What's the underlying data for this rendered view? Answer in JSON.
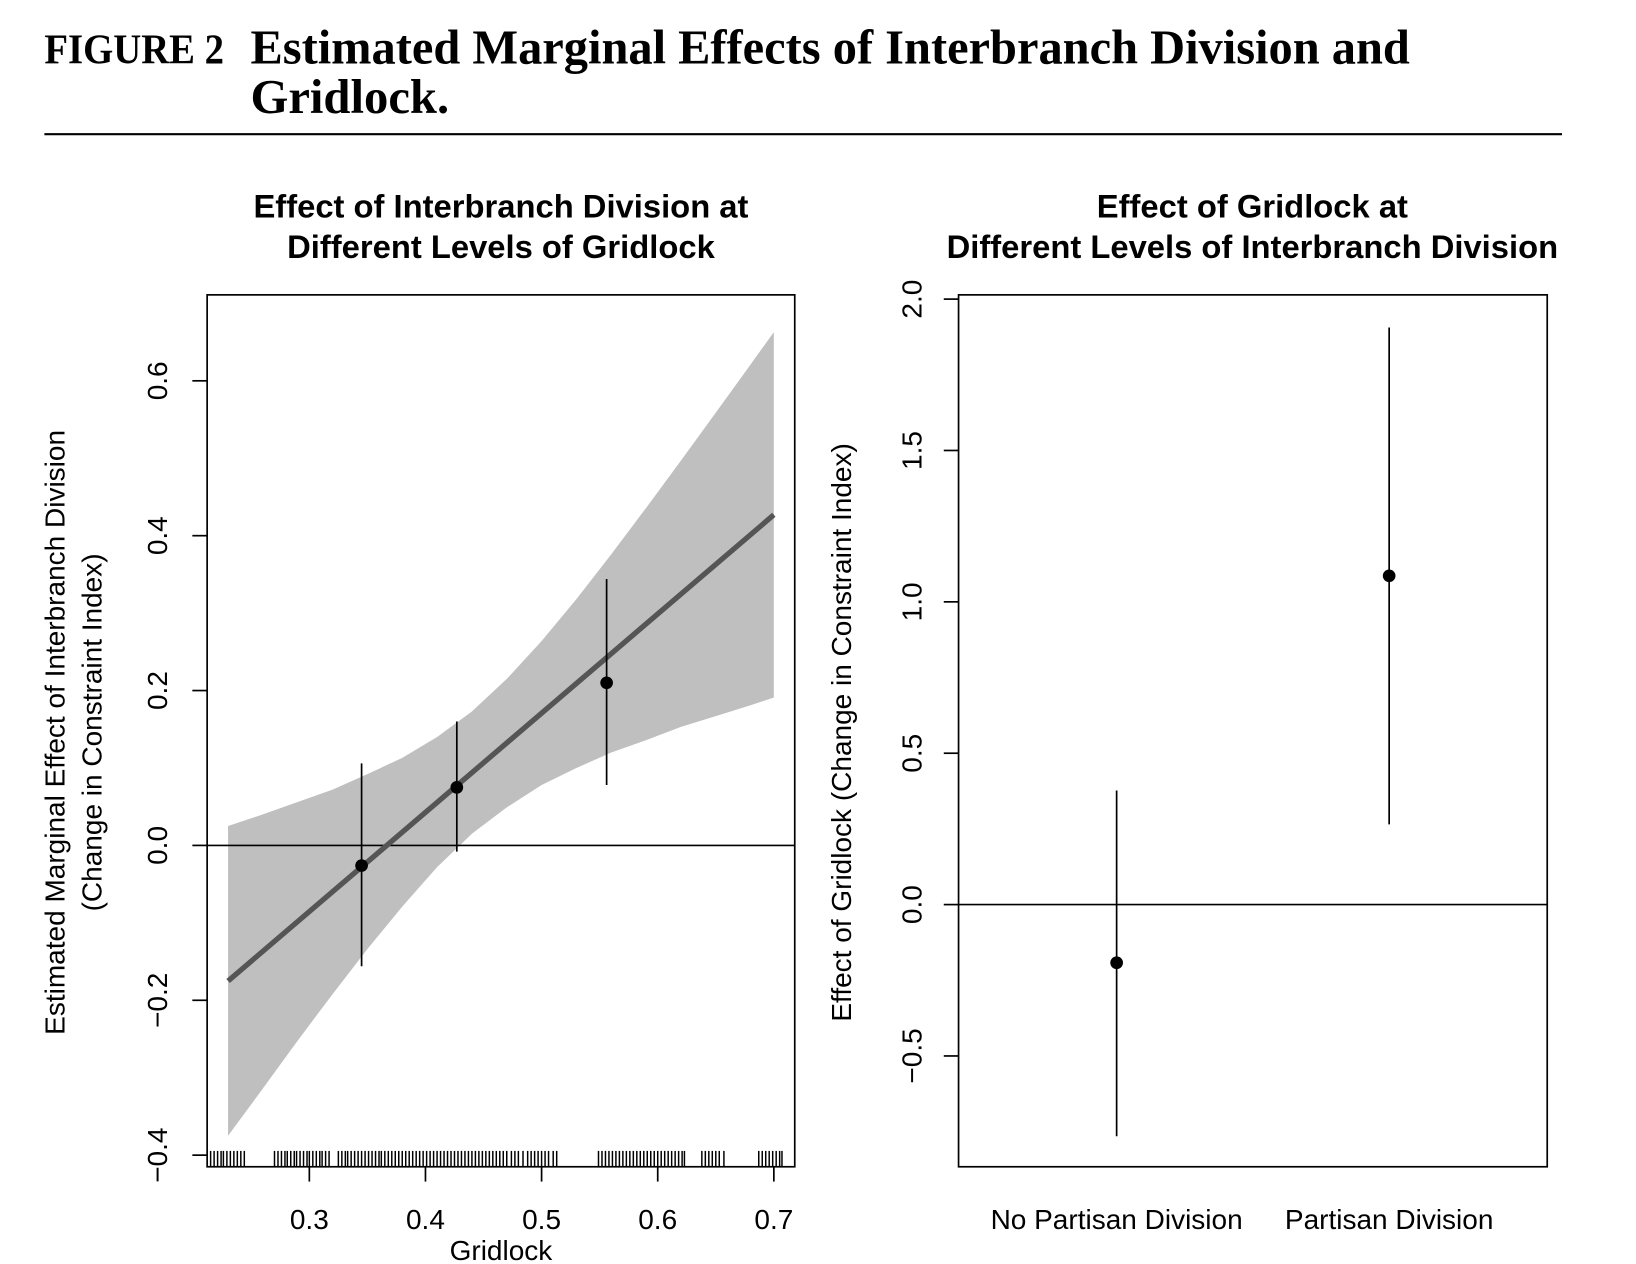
{
  "figure": {
    "label": "FIGURE 2",
    "title_line1": "Estimated Marginal Effects of Interbranch Division and",
    "title_line2": "Gridlock."
  },
  "chart_data": [
    {
      "type": "line",
      "title_line1": "Effect of Interbranch Division at",
      "title_line2": "Different Levels of Gridlock",
      "xlabel": "Gridlock",
      "ylabel_line1": "Estimated Marginal Effect of Interbranch Division",
      "ylabel_line2": "(Change in Constraint Index)",
      "xlim": [
        0.212,
        0.718
      ],
      "ylim": [
        -0.415,
        0.711
      ],
      "x_ticks": {
        "values": [
          0.3,
          0.4,
          0.5,
          0.6,
          0.7
        ],
        "labels": [
          "0.3",
          "0.4",
          "0.5",
          "0.6",
          "0.7"
        ]
      },
      "y_ticks": {
        "values": [
          -0.4,
          -0.2,
          0.0,
          0.2,
          0.4,
          0.6
        ],
        "labels": [
          "−0.4",
          "−0.2",
          "0.0",
          "0.2",
          "0.4",
          "0.6"
        ]
      },
      "reference_line_y": 0,
      "line": {
        "x": [
          0.23,
          0.7
        ],
        "y": [
          -0.175,
          0.427
        ]
      },
      "confidence_band": {
        "x": [
          0.23,
          0.26,
          0.29,
          0.32,
          0.35,
          0.38,
          0.41,
          0.44,
          0.47,
          0.5,
          0.53,
          0.56,
          0.59,
          0.62,
          0.65,
          0.68,
          0.7
        ],
        "upper": [
          0.025,
          0.04,
          0.056,
          0.072,
          0.092,
          0.113,
          0.14,
          0.173,
          0.215,
          0.264,
          0.318,
          0.376,
          0.436,
          0.497,
          0.559,
          0.621,
          0.663
        ],
        "lower": [
          -0.375,
          -0.314,
          -0.252,
          -0.192,
          -0.134,
          -0.079,
          -0.028,
          0.015,
          0.049,
          0.078,
          0.1,
          0.12,
          0.136,
          0.153,
          0.167,
          0.181,
          0.191
        ]
      },
      "points": [
        {
          "x": 0.345,
          "y": -0.026,
          "lower": -0.156,
          "upper": 0.106
        },
        {
          "x": 0.427,
          "y": 0.075,
          "lower": -0.008,
          "upper": 0.16
        },
        {
          "x": 0.556,
          "y": 0.21,
          "lower": 0.078,
          "upper": 0.344
        }
      ],
      "rug": [
        0.215,
        0.218,
        0.221,
        0.224,
        0.226,
        0.229,
        0.232,
        0.235,
        0.238,
        0.241,
        0.244,
        0.27,
        0.273,
        0.276,
        0.279,
        0.281,
        0.284,
        0.287,
        0.289,
        0.292,
        0.295,
        0.298,
        0.3,
        0.303,
        0.306,
        0.309,
        0.311,
        0.314,
        0.317,
        0.325,
        0.328,
        0.331,
        0.333,
        0.336,
        0.339,
        0.342,
        0.345,
        0.348,
        0.351,
        0.354,
        0.357,
        0.36,
        0.362,
        0.365,
        0.368,
        0.371,
        0.374,
        0.377,
        0.38,
        0.383,
        0.386,
        0.389,
        0.392,
        0.395,
        0.398,
        0.401,
        0.404,
        0.407,
        0.41,
        0.413,
        0.416,
        0.419,
        0.422,
        0.425,
        0.428,
        0.431,
        0.434,
        0.437,
        0.44,
        0.443,
        0.446,
        0.449,
        0.452,
        0.455,
        0.458,
        0.461,
        0.464,
        0.467,
        0.47,
        0.474,
        0.477,
        0.48,
        0.484,
        0.488,
        0.491,
        0.494,
        0.497,
        0.5,
        0.503,
        0.506,
        0.51,
        0.513,
        0.549,
        0.552,
        0.555,
        0.558,
        0.561,
        0.564,
        0.567,
        0.57,
        0.573,
        0.576,
        0.579,
        0.582,
        0.585,
        0.588,
        0.591,
        0.594,
        0.597,
        0.6,
        0.603,
        0.606,
        0.609,
        0.612,
        0.615,
        0.618,
        0.621,
        0.623,
        0.638,
        0.641,
        0.644,
        0.647,
        0.65,
        0.653,
        0.657,
        0.687,
        0.69,
        0.693,
        0.696,
        0.699,
        0.702,
        0.705,
        0.707
      ],
      "colors": {
        "band": "#bfbfbf",
        "line": "#555555",
        "points": "#000000"
      },
      "grid": false
    },
    {
      "type": "scatter",
      "title_line1": "Effect of Gridlock at",
      "title_line2": "Different Levels of Interbranch Division",
      "ylabel": "Effect of Gridlock (Change in Constraint Index)",
      "categories": [
        "No Partisan Division",
        "Partisan Division"
      ],
      "values": [
        -0.192,
        1.086
      ],
      "lower": [
        -0.765,
        0.265
      ],
      "upper": [
        0.377,
        1.906
      ],
      "xlim": [
        0.42,
        2.58
      ],
      "ylim": [
        -0.866,
        2.014
      ],
      "y_ticks": {
        "values": [
          -0.5,
          0.0,
          0.5,
          1.0,
          1.5,
          2.0
        ],
        "labels": [
          "−0.5",
          "0.0",
          "0.5",
          "1.0",
          "1.5",
          "2.0"
        ]
      },
      "reference_line_y": 0,
      "colors": {
        "points": "#000000"
      },
      "grid": false
    }
  ]
}
